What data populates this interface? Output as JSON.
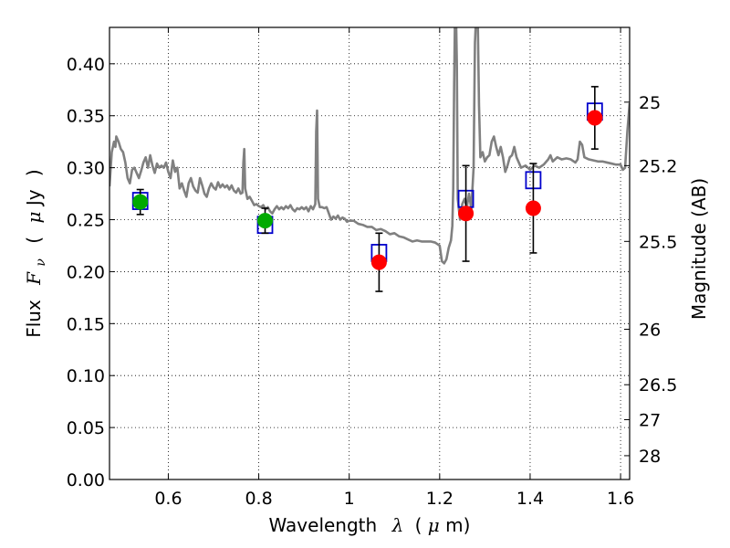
{
  "chart_data": {
    "type": "scatter",
    "title": "",
    "xlabel_parts": [
      "Wavelength",
      "λ",
      "(",
      "μ",
      "m)"
    ],
    "ylabel_parts": [
      "Flux",
      "F",
      "ν",
      "(",
      "μ",
      "Jy",
      ")"
    ],
    "y2label": "Magnitude (AB)",
    "xlim": [
      0.47,
      1.62
    ],
    "ylim": [
      0.0,
      0.435
    ],
    "grid": true,
    "xticks": [
      {
        "value": 0.6,
        "label": "0.6"
      },
      {
        "value": 0.8,
        "label": "0.8"
      },
      {
        "value": 1.0,
        "label": "1"
      },
      {
        "value": 1.2,
        "label": "1.2"
      },
      {
        "value": 1.4,
        "label": "1.4"
      },
      {
        "value": 1.6,
        "label": "1.6"
      }
    ],
    "yticks": [
      {
        "value": 0.0,
        "label": "0.00"
      },
      {
        "value": 0.05,
        "label": "0.05"
      },
      {
        "value": 0.1,
        "label": "0.10"
      },
      {
        "value": 0.15,
        "label": "0.15"
      },
      {
        "value": 0.2,
        "label": "0.20"
      },
      {
        "value": 0.25,
        "label": "0.25"
      },
      {
        "value": 0.3,
        "label": "0.30"
      },
      {
        "value": 0.35,
        "label": "0.35"
      },
      {
        "value": 0.4,
        "label": "0.40"
      }
    ],
    "mag_ticks": [
      {
        "mag": 25,
        "label": "25"
      },
      {
        "mag": 25.2,
        "label": "25.2"
      },
      {
        "mag": 25.5,
        "label": "25.5"
      },
      {
        "mag": 26,
        "label": "26"
      },
      {
        "mag": 26.5,
        "label": "26.5"
      },
      {
        "mag": 27,
        "label": "27"
      },
      {
        "mag": 28,
        "label": "28"
      }
    ],
    "spectrum": {
      "color": "#808080",
      "points": [
        [
          0.47,
          0.282
        ],
        [
          0.475,
          0.315
        ],
        [
          0.48,
          0.325
        ],
        [
          0.483,
          0.32
        ],
        [
          0.485,
          0.33
        ],
        [
          0.49,
          0.325
        ],
        [
          0.495,
          0.318
        ],
        [
          0.5,
          0.315
        ],
        [
          0.505,
          0.305
        ],
        [
          0.51,
          0.29
        ],
        [
          0.515,
          0.285
        ],
        [
          0.52,
          0.298
        ],
        [
          0.525,
          0.3
        ],
        [
          0.53,
          0.295
        ],
        [
          0.535,
          0.29
        ],
        [
          0.54,
          0.297
        ],
        [
          0.545,
          0.305
        ],
        [
          0.55,
          0.31
        ],
        [
          0.555,
          0.3
        ],
        [
          0.56,
          0.312
        ],
        [
          0.565,
          0.302
        ],
        [
          0.57,
          0.295
        ],
        [
          0.575,
          0.304
        ],
        [
          0.58,
          0.3
        ],
        [
          0.585,
          0.302
        ],
        [
          0.59,
          0.3
        ],
        [
          0.595,
          0.305
        ],
        [
          0.6,
          0.296
        ],
        [
          0.605,
          0.29
        ],
        [
          0.61,
          0.307
        ],
        [
          0.615,
          0.296
        ],
        [
          0.62,
          0.3
        ],
        [
          0.625,
          0.28
        ],
        [
          0.63,
          0.285
        ],
        [
          0.635,
          0.278
        ],
        [
          0.64,
          0.272
        ],
        [
          0.645,
          0.285
        ],
        [
          0.65,
          0.29
        ],
        [
          0.655,
          0.282
        ],
        [
          0.66,
          0.278
        ],
        [
          0.665,
          0.276
        ],
        [
          0.67,
          0.29
        ],
        [
          0.675,
          0.283
        ],
        [
          0.68,
          0.275
        ],
        [
          0.685,
          0.272
        ],
        [
          0.69,
          0.28
        ],
        [
          0.695,
          0.285
        ],
        [
          0.7,
          0.281
        ],
        [
          0.705,
          0.279
        ],
        [
          0.71,
          0.286
        ],
        [
          0.715,
          0.281
        ],
        [
          0.72,
          0.284
        ],
        [
          0.725,
          0.281
        ],
        [
          0.73,
          0.283
        ],
        [
          0.735,
          0.279
        ],
        [
          0.74,
          0.283
        ],
        [
          0.745,
          0.278
        ],
        [
          0.75,
          0.276
        ],
        [
          0.755,
          0.28
        ],
        [
          0.76,
          0.275
        ],
        [
          0.764,
          0.276
        ],
        [
          0.766,
          0.305
        ],
        [
          0.768,
          0.318
        ],
        [
          0.77,
          0.28
        ],
        [
          0.775,
          0.27
        ],
        [
          0.78,
          0.272
        ],
        [
          0.785,
          0.268
        ],
        [
          0.79,
          0.264
        ],
        [
          0.795,
          0.265
        ],
        [
          0.8,
          0.263
        ],
        [
          0.805,
          0.262
        ],
        [
          0.81,
          0.264
        ],
        [
          0.815,
          0.26
        ],
        [
          0.82,
          0.262
        ],
        [
          0.825,
          0.258
        ],
        [
          0.83,
          0.256
        ],
        [
          0.835,
          0.26
        ],
        [
          0.84,
          0.263
        ],
        [
          0.845,
          0.26
        ],
        [
          0.85,
          0.262
        ],
        [
          0.855,
          0.26
        ],
        [
          0.86,
          0.263
        ],
        [
          0.865,
          0.261
        ],
        [
          0.87,
          0.264
        ],
        [
          0.875,
          0.26
        ],
        [
          0.88,
          0.258
        ],
        [
          0.885,
          0.261
        ],
        [
          0.89,
          0.26
        ],
        [
          0.895,
          0.262
        ],
        [
          0.9,
          0.26
        ],
        [
          0.905,
          0.262
        ],
        [
          0.91,
          0.258
        ],
        [
          0.915,
          0.263
        ],
        [
          0.92,
          0.26
        ],
        [
          0.925,
          0.265
        ],
        [
          0.927,
          0.335
        ],
        [
          0.929,
          0.355
        ],
        [
          0.931,
          0.27
        ],
        [
          0.935,
          0.262
        ],
        [
          0.94,
          0.262
        ],
        [
          0.945,
          0.261
        ],
        [
          0.95,
          0.262
        ],
        [
          0.955,
          0.256
        ],
        [
          0.96,
          0.25
        ],
        [
          0.965,
          0.253
        ],
        [
          0.97,
          0.251
        ],
        [
          0.975,
          0.254
        ],
        [
          0.98,
          0.25
        ],
        [
          0.985,
          0.252
        ],
        [
          0.99,
          0.251
        ],
        [
          0.995,
          0.248
        ],
        [
          1.0,
          0.249
        ],
        [
          1.01,
          0.249
        ],
        [
          1.02,
          0.246
        ],
        [
          1.03,
          0.245
        ],
        [
          1.04,
          0.243
        ],
        [
          1.05,
          0.243
        ],
        [
          1.06,
          0.24
        ],
        [
          1.07,
          0.241
        ],
        [
          1.08,
          0.239
        ],
        [
          1.09,
          0.236
        ],
        [
          1.1,
          0.237
        ],
        [
          1.11,
          0.234
        ],
        [
          1.12,
          0.233
        ],
        [
          1.13,
          0.231
        ],
        [
          1.14,
          0.229
        ],
        [
          1.15,
          0.23
        ],
        [
          1.16,
          0.229
        ],
        [
          1.17,
          0.229
        ],
        [
          1.18,
          0.229
        ],
        [
          1.19,
          0.228
        ],
        [
          1.2,
          0.225
        ],
        [
          1.205,
          0.21
        ],
        [
          1.21,
          0.208
        ],
        [
          1.215,
          0.212
        ],
        [
          1.22,
          0.223
        ],
        [
          1.225,
          0.23
        ],
        [
          1.228,
          0.244
        ],
        [
          1.23,
          0.28
        ],
        [
          1.232,
          0.38
        ],
        [
          1.234,
          0.45
        ],
        [
          1.236,
          0.45
        ],
        [
          1.238,
          0.4
        ],
        [
          1.24,
          0.27
        ],
        [
          1.245,
          0.25
        ],
        [
          1.25,
          0.265
        ],
        [
          1.255,
          0.27
        ],
        [
          1.26,
          0.262
        ],
        [
          1.265,
          0.275
        ],
        [
          1.27,
          0.26
        ],
        [
          1.275,
          0.3
        ],
        [
          1.278,
          0.42
        ],
        [
          1.281,
          0.45
        ],
        [
          1.284,
          0.45
        ],
        [
          1.287,
          0.36
        ],
        [
          1.29,
          0.31
        ],
        [
          1.295,
          0.315
        ],
        [
          1.3,
          0.306
        ],
        [
          1.305,
          0.31
        ],
        [
          1.31,
          0.312
        ],
        [
          1.315,
          0.325
        ],
        [
          1.32,
          0.33
        ],
        [
          1.325,
          0.32
        ],
        [
          1.33,
          0.312
        ],
        [
          1.335,
          0.32
        ],
        [
          1.34,
          0.31
        ],
        [
          1.345,
          0.296
        ],
        [
          1.35,
          0.302
        ],
        [
          1.355,
          0.31
        ],
        [
          1.36,
          0.312
        ],
        [
          1.365,
          0.32
        ],
        [
          1.37,
          0.31
        ],
        [
          1.375,
          0.305
        ],
        [
          1.38,
          0.3
        ],
        [
          1.39,
          0.302
        ],
        [
          1.4,
          0.298
        ],
        [
          1.41,
          0.302
        ],
        [
          1.42,
          0.3
        ],
        [
          1.43,
          0.303
        ],
        [
          1.44,
          0.308
        ],
        [
          1.445,
          0.312
        ],
        [
          1.45,
          0.306
        ],
        [
          1.46,
          0.31
        ],
        [
          1.47,
          0.308
        ],
        [
          1.48,
          0.309
        ],
        [
          1.49,
          0.308
        ],
        [
          1.5,
          0.305
        ],
        [
          1.505,
          0.308
        ],
        [
          1.51,
          0.325
        ],
        [
          1.515,
          0.322
        ],
        [
          1.52,
          0.31
        ],
        [
          1.53,
          0.308
        ],
        [
          1.54,
          0.307
        ],
        [
          1.55,
          0.306
        ],
        [
          1.56,
          0.306
        ],
        [
          1.57,
          0.305
        ],
        [
          1.58,
          0.304
        ],
        [
          1.59,
          0.303
        ],
        [
          1.6,
          0.303
        ],
        [
          1.605,
          0.298
        ],
        [
          1.61,
          0.3
        ],
        [
          1.615,
          0.335
        ],
        [
          1.62,
          0.362
        ]
      ]
    },
    "model_points": {
      "marker": "open-square",
      "color": "#0000cc",
      "points": [
        {
          "x": 0.538,
          "y": 0.268
        },
        {
          "x": 0.814,
          "y": 0.245
        },
        {
          "x": 1.066,
          "y": 0.218
        },
        {
          "x": 1.258,
          "y": 0.27
        },
        {
          "x": 1.407,
          "y": 0.288
        },
        {
          "x": 1.543,
          "y": 0.354
        }
      ]
    },
    "obs_points": [
      {
        "x": 0.538,
        "y": 0.267,
        "yerr": 0.012,
        "color": "#00aa00"
      },
      {
        "x": 0.814,
        "y": 0.249,
        "yerr": 0.012,
        "color": "#00aa00"
      },
      {
        "x": 1.066,
        "y": 0.209,
        "yerr": 0.028,
        "color": "#ff0000"
      },
      {
        "x": 1.258,
        "y": 0.256,
        "yerr": 0.046,
        "color": "#ff0000"
      },
      {
        "x": 1.407,
        "y": 0.261,
        "yerr": 0.043,
        "color": "#ff0000"
      },
      {
        "x": 1.543,
        "y": 0.348,
        "yerr": 0.03,
        "color": "#ff0000"
      }
    ]
  }
}
